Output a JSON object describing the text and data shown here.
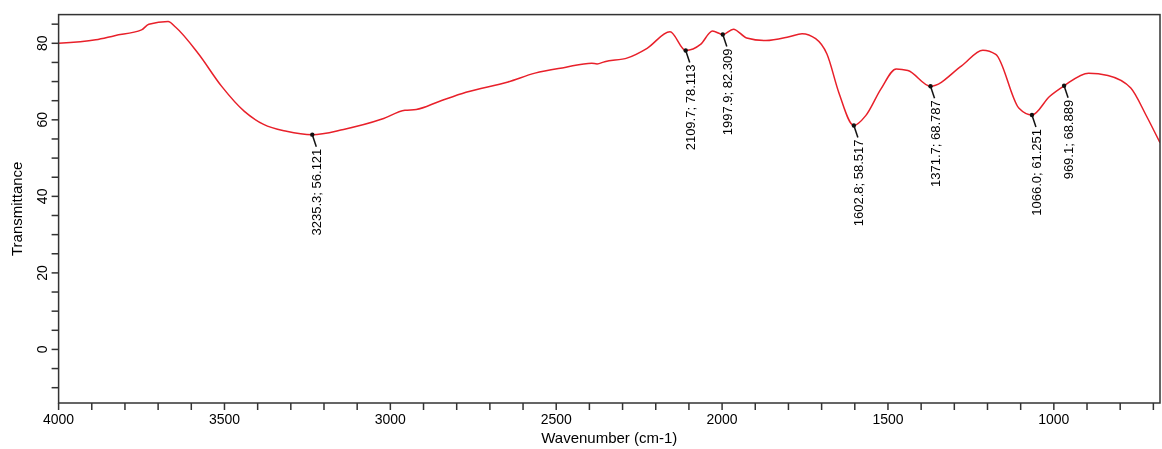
{
  "chart_data": {
    "type": "line",
    "xlabel": "Wavenumber (cm-1)",
    "ylabel": "Transmittance",
    "xlim": [
      4000,
      680
    ],
    "ylim": [
      -14,
      87.5
    ],
    "xticks": [
      4000,
      {
        "value": 3900,
        "label": null
      },
      {
        "value": 3800,
        "label": null
      },
      {
        "value": 3700,
        "label": null
      },
      {
        "value": 3600,
        "label": null
      },
      3500,
      {
        "value": 3400,
        "label": null
      },
      {
        "value": 3300,
        "label": null
      },
      {
        "value": 3200,
        "label": null
      },
      {
        "value": 3100,
        "label": null
      },
      3000,
      {
        "value": 2900,
        "label": null
      },
      {
        "value": 2800,
        "label": null
      },
      {
        "value": 2700,
        "label": null
      },
      {
        "value": 2600,
        "label": null
      },
      2500,
      {
        "value": 2400,
        "label": null
      },
      {
        "value": 2300,
        "label": null
      },
      {
        "value": 2200,
        "label": null
      },
      {
        "value": 2100,
        "label": null
      },
      2000,
      {
        "value": 1900,
        "label": null
      },
      {
        "value": 1800,
        "label": null
      },
      {
        "value": 1700,
        "label": null
      },
      {
        "value": 1600,
        "label": null
      },
      1500,
      {
        "value": 1400,
        "label": null
      },
      {
        "value": 1300,
        "label": null
      },
      {
        "value": 1200,
        "label": null
      },
      {
        "value": 1100,
        "label": null
      },
      1000,
      {
        "value": 900,
        "label": null
      },
      {
        "value": 800,
        "label": null
      },
      {
        "value": 700,
        "label": null
      }
    ],
    "yticks": [
      {
        "value": -10,
        "label": null
      },
      {
        "value": -5,
        "label": null
      },
      0,
      {
        "value": 5,
        "label": null
      },
      {
        "value": 10,
        "label": null
      },
      {
        "value": 15,
        "label": null
      },
      20,
      {
        "value": 25,
        "label": null
      },
      {
        "value": 30,
        "label": null
      },
      {
        "value": 35,
        "label": null
      },
      40,
      {
        "value": 45,
        "label": null
      },
      {
        "value": 50,
        "label": null
      },
      {
        "value": 55,
        "label": null
      },
      60,
      {
        "value": 65,
        "label": null
      },
      {
        "value": 70,
        "label": null
      },
      {
        "value": 75,
        "label": null
      },
      80,
      {
        "value": 85,
        "label": null
      }
    ],
    "grid": false,
    "marker": "none",
    "line_style": "solid",
    "series": [
      {
        "color": "#e8202a",
        "x": [
          4000,
          3888,
          3831,
          3750,
          3728,
          3670,
          3647,
          3578,
          3509,
          3440,
          3382,
          3313,
          3235.3,
          3141,
          3025,
          2956,
          2922,
          2853,
          2772,
          2645,
          2564,
          2474,
          2393,
          2377,
          2354,
          2285,
          2226,
          2157,
          2109.7,
          2065,
          2029,
          1997.9,
          1966,
          1926,
          1868,
          1798,
          1759,
          1718,
          1684,
          1648,
          1602.8,
          1567,
          1521,
          1475,
          1440,
          1371.7,
          1278,
          1214,
          1175,
          1105,
          1066.0,
          1013,
          969.1,
          895,
          837,
          768,
          722,
          680
        ],
        "values": [
          80,
          80.9,
          82.0,
          83.5,
          85.0,
          85.7,
          84.2,
          77.2,
          68.8,
          62.2,
          58.8,
          57.0,
          56.121,
          57.5,
          60.2,
          62.5,
          62.7,
          64.8,
          67.2,
          69.9,
          72.2,
          73.7,
          74.8,
          74.6,
          75.2,
          76.2,
          78.7,
          83.0,
          78.113,
          79.7,
          83.2,
          82.309,
          83.7,
          81.4,
          80.7,
          81.7,
          82.5,
          81.2,
          77.2,
          67.1,
          58.517,
          61.1,
          68.1,
          73.3,
          72.9,
          68.787,
          74.1,
          78.2,
          77.1,
          63.0,
          61.251,
          66.1,
          68.889,
          72.2,
          71.6,
          68.3,
          61.2,
          54.0
        ]
      }
    ],
    "annotations": [
      {
        "text": "3235.3; 56.121",
        "x": 3235.3,
        "y": 56.121
      },
      {
        "text": "2109.7; 78.113",
        "x": 2109.7,
        "y": 78.113
      },
      {
        "text": "1997.9; 82.309",
        "x": 1997.9,
        "y": 82.309
      },
      {
        "text": "1602.8; 58.517",
        "x": 1602.8,
        "y": 58.517
      },
      {
        "text": "1371.7; 68.787",
        "x": 1371.7,
        "y": 68.787
      },
      {
        "text": "1066.0; 61.251",
        "x": 1066.0,
        "y": 61.251
      },
      {
        "text": "969.1; 68.889",
        "x": 969.1,
        "y": 68.889
      }
    ]
  }
}
